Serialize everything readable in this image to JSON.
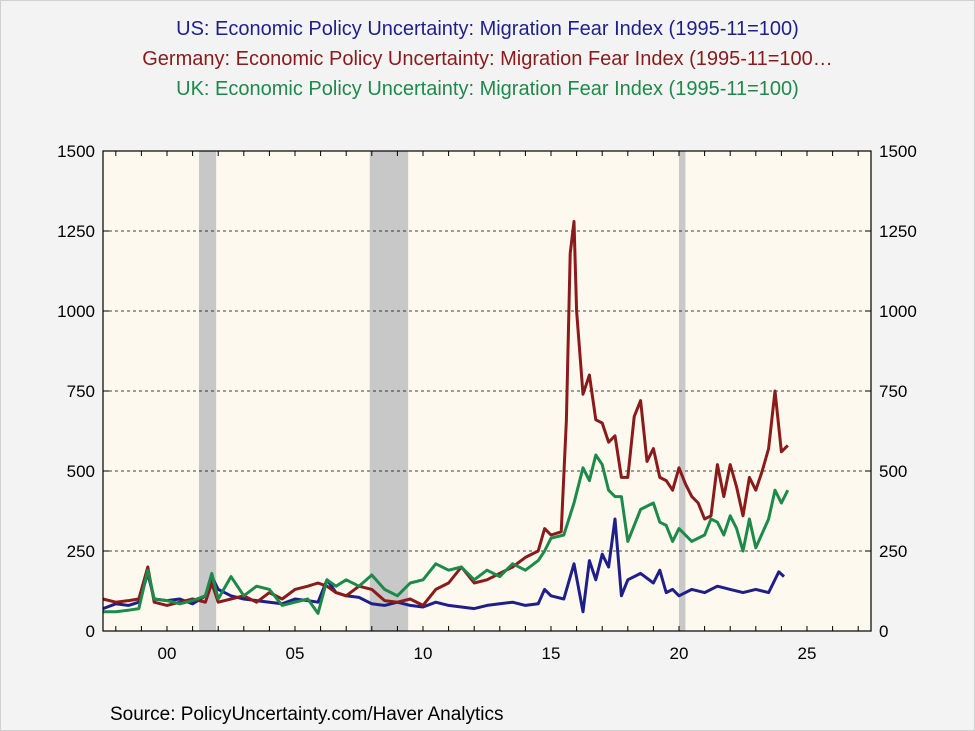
{
  "titles": {
    "us": "US: Economic Policy Uncertainty: Migration Fear Index (1995-11=100)",
    "de": "Germany: Economic Policy Uncertainty: Migration Fear Index (1995-11=100…",
    "uk": "UK: Economic Policy Uncertainty: Migration Fear Index (1995-11=100)"
  },
  "source": "Source:  PolicyUncertainty.com/Haver Analytics",
  "chart_data": {
    "type": "line",
    "x_axis": {
      "range": [
        1997.5,
        2027.5
      ],
      "ticks": [
        2000,
        2005,
        2010,
        2015,
        2020,
        2025
      ],
      "tick_labels": [
        "00",
        "05",
        "10",
        "15",
        "20",
        "25"
      ]
    },
    "y_axis": {
      "range": [
        0,
        1500
      ],
      "ticks": [
        0,
        250,
        500,
        750,
        1000,
        1250,
        1500
      ],
      "tick_labels": [
        "0",
        "250",
        "500",
        "750",
        "1000",
        "1250",
        "1500"
      ],
      "right_axis_mirrored": true
    },
    "grid": "horizontal dashed",
    "plot_background": "#fdf9ee",
    "recession_bands": [
      [
        2001.25,
        2001.92
      ],
      [
        2007.92,
        2009.42
      ],
      [
        2020.0,
        2020.25
      ]
    ],
    "series": [
      {
        "name": "US: Economic Policy Uncertainty: Migration Fear Index (1995-11=100)",
        "color": "#1f1f8c",
        "x": [
          1997.5,
          1998.0,
          1998.5,
          1998.9,
          1999.25,
          1999.5,
          2000.0,
          2000.5,
          2001.0,
          2001.5,
          2001.75,
          2002.0,
          2002.5,
          2003.0,
          2003.5,
          2004.0,
          2004.5,
          2005.0,
          2005.5,
          2005.9,
          2006.25,
          2006.6,
          2007.0,
          2007.5,
          2008.0,
          2008.5,
          2009.0,
          2009.5,
          2010.0,
          2010.5,
          2011.0,
          2011.5,
          2012.0,
          2012.5,
          2013.0,
          2013.5,
          2014.0,
          2014.5,
          2014.75,
          2015.0,
          2015.5,
          2015.9,
          2016.25,
          2016.5,
          2016.75,
          2017.0,
          2017.25,
          2017.5,
          2017.75,
          2018.0,
          2018.5,
          2019.0,
          2019.25,
          2019.5,
          2019.75,
          2020.0,
          2020.5,
          2021.0,
          2021.5,
          2022.0,
          2022.5,
          2023.0,
          2023.5,
          2023.9,
          2024.1
        ],
        "values": [
          70,
          85,
          80,
          90,
          180,
          100,
          95,
          100,
          85,
          110,
          170,
          130,
          110,
          100,
          95,
          90,
          85,
          100,
          95,
          90,
          160,
          120,
          110,
          105,
          85,
          80,
          90,
          80,
          75,
          90,
          80,
          75,
          70,
          80,
          85,
          90,
          80,
          85,
          130,
          110,
          100,
          210,
          60,
          220,
          160,
          240,
          200,
          350,
          110,
          160,
          180,
          150,
          190,
          120,
          130,
          110,
          130,
          120,
          140,
          130,
          120,
          130,
          120,
          185,
          170
        ]
      },
      {
        "name": "Germany: Economic Policy Uncertainty: Migration Fear Index (1995-11=100…",
        "color": "#8b1a1a",
        "x": [
          1997.5,
          1998.0,
          1998.5,
          1998.9,
          1999.25,
          1999.5,
          2000.0,
          2000.5,
          2001.0,
          2001.5,
          2001.75,
          2002.0,
          2002.5,
          2003.0,
          2003.5,
          2004.0,
          2004.5,
          2005.0,
          2005.5,
          2005.9,
          2006.25,
          2006.6,
          2007.0,
          2007.5,
          2008.0,
          2008.5,
          2009.0,
          2009.5,
          2010.0,
          2010.5,
          2011.0,
          2011.5,
          2012.0,
          2012.5,
          2013.0,
          2013.5,
          2014.0,
          2014.5,
          2014.75,
          2015.0,
          2015.4,
          2015.6,
          2015.75,
          2015.9,
          2016.0,
          2016.25,
          2016.5,
          2016.75,
          2017.0,
          2017.25,
          2017.5,
          2017.75,
          2018.0,
          2018.25,
          2018.5,
          2018.75,
          2019.0,
          2019.25,
          2019.5,
          2019.75,
          2020.0,
          2020.25,
          2020.5,
          2020.75,
          2021.0,
          2021.25,
          2021.5,
          2021.75,
          2022.0,
          2022.25,
          2022.5,
          2022.75,
          2023.0,
          2023.25,
          2023.5,
          2023.75,
          2024.0,
          2024.25
        ],
        "values": [
          100,
          90,
          95,
          100,
          200,
          90,
          80,
          90,
          100,
          90,
          150,
          90,
          100,
          110,
          90,
          120,
          100,
          130,
          140,
          150,
          140,
          120,
          110,
          140,
          130,
          95,
          90,
          100,
          80,
          130,
          150,
          200,
          150,
          160,
          180,
          200,
          230,
          250,
          320,
          300,
          310,
          660,
          1180,
          1280,
          1000,
          740,
          800,
          660,
          650,
          590,
          610,
          480,
          480,
          670,
          720,
          530,
          570,
          480,
          470,
          440,
          510,
          460,
          420,
          400,
          350,
          360,
          520,
          420,
          520,
          450,
          360,
          480,
          440,
          500,
          570,
          750,
          560,
          580
        ]
      },
      {
        "name": "UK: Economic Policy Uncertainty: Migration Fear Index (1995-11=100)",
        "color": "#1e8a4a",
        "x": [
          1997.5,
          1998.0,
          1998.5,
          1998.9,
          1999.25,
          1999.5,
          2000.0,
          2000.5,
          2001.0,
          2001.5,
          2001.75,
          2002.0,
          2002.5,
          2003.0,
          2003.5,
          2004.0,
          2004.5,
          2005.0,
          2005.5,
          2005.9,
          2006.25,
          2006.6,
          2007.0,
          2007.5,
          2008.0,
          2008.5,
          2009.0,
          2009.5,
          2010.0,
          2010.5,
          2011.0,
          2011.5,
          2012.0,
          2012.5,
          2013.0,
          2013.5,
          2014.0,
          2014.5,
          2014.75,
          2015.0,
          2015.5,
          2015.9,
          2016.25,
          2016.5,
          2016.75,
          2017.0,
          2017.25,
          2017.5,
          2017.75,
          2018.0,
          2018.5,
          2019.0,
          2019.25,
          2019.5,
          2019.75,
          2020.0,
          2020.5,
          2021.0,
          2021.25,
          2021.5,
          2021.75,
          2022.0,
          2022.25,
          2022.5,
          2022.75,
          2023.0,
          2023.5,
          2023.75,
          2024.0,
          2024.25
        ],
        "values": [
          60,
          60,
          65,
          70,
          190,
          100,
          95,
          85,
          95,
          110,
          180,
          100,
          170,
          110,
          140,
          130,
          80,
          90,
          100,
          55,
          160,
          140,
          160,
          140,
          175,
          130,
          110,
          150,
          160,
          210,
          190,
          200,
          160,
          190,
          170,
          210,
          190,
          220,
          250,
          290,
          300,
          400,
          510,
          470,
          550,
          520,
          440,
          420,
          420,
          280,
          380,
          400,
          340,
          330,
          280,
          320,
          280,
          300,
          350,
          340,
          300,
          360,
          320,
          250,
          350,
          260,
          350,
          440,
          400,
          440
        ]
      }
    ]
  }
}
